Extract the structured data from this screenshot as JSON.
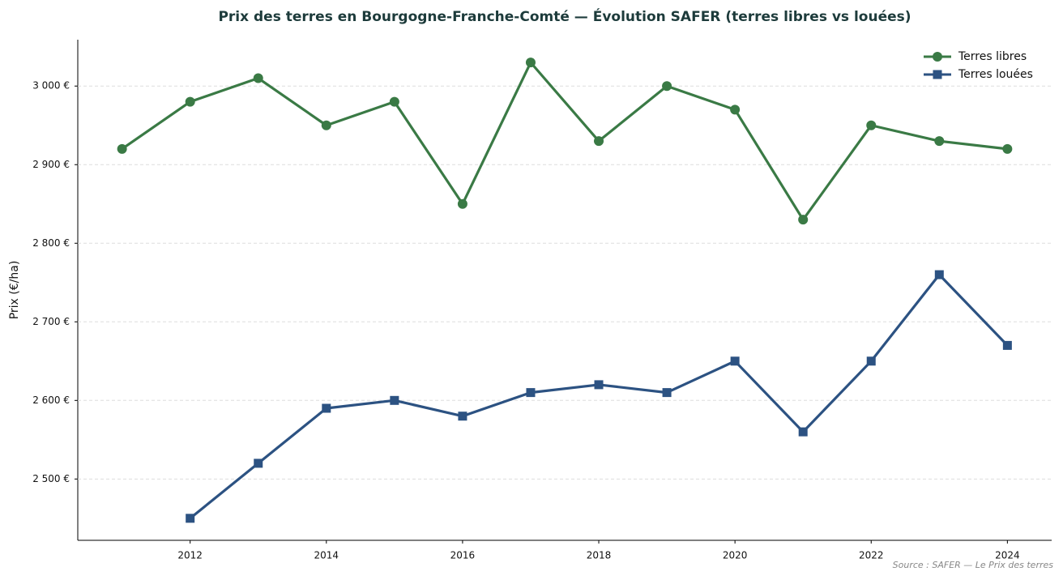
{
  "chart_data": {
    "type": "line",
    "title": "Prix des terres en Bourgogne-Franche-Comté — Évolution SAFER (terres libres vs louées)",
    "ylabel": "Prix (€/ha)",
    "source": "Source : SAFER — Le Prix des terres",
    "x": [
      2011,
      2012,
      2013,
      2014,
      2015,
      2016,
      2017,
      2018,
      2019,
      2020,
      2021,
      2022,
      2023,
      2024
    ],
    "series": [
      {
        "name": "Terres libres",
        "color": "#3a7a45",
        "marker": "circle",
        "values": [
          2920,
          2980,
          3010,
          2950,
          2980,
          2850,
          3030,
          2930,
          3000,
          2970,
          2830,
          2950,
          2930,
          2920
        ]
      },
      {
        "name": "Terres louées",
        "color": "#2c5282",
        "marker": "square",
        "values": [
          null,
          2450,
          2520,
          2590,
          2600,
          2580,
          2610,
          2620,
          2610,
          2650,
          2560,
          2650,
          2760,
          2670
        ]
      }
    ],
    "xlim": [
      2010.35,
      2024.65
    ],
    "ylim": [
      2422,
      3059
    ],
    "xticks": [
      2012,
      2014,
      2016,
      2018,
      2020,
      2022,
      2024
    ],
    "yticks": [
      {
        "value": 2500,
        "label": "2 500 €"
      },
      {
        "value": 2600,
        "label": "2 600 €"
      },
      {
        "value": 2700,
        "label": "2 700 €"
      },
      {
        "value": 2800,
        "label": "2 800 €"
      },
      {
        "value": 2900,
        "label": "2 900 €"
      },
      {
        "value": 3000,
        "label": "3 000 €"
      }
    ],
    "grid": true,
    "legend": "upper right"
  }
}
